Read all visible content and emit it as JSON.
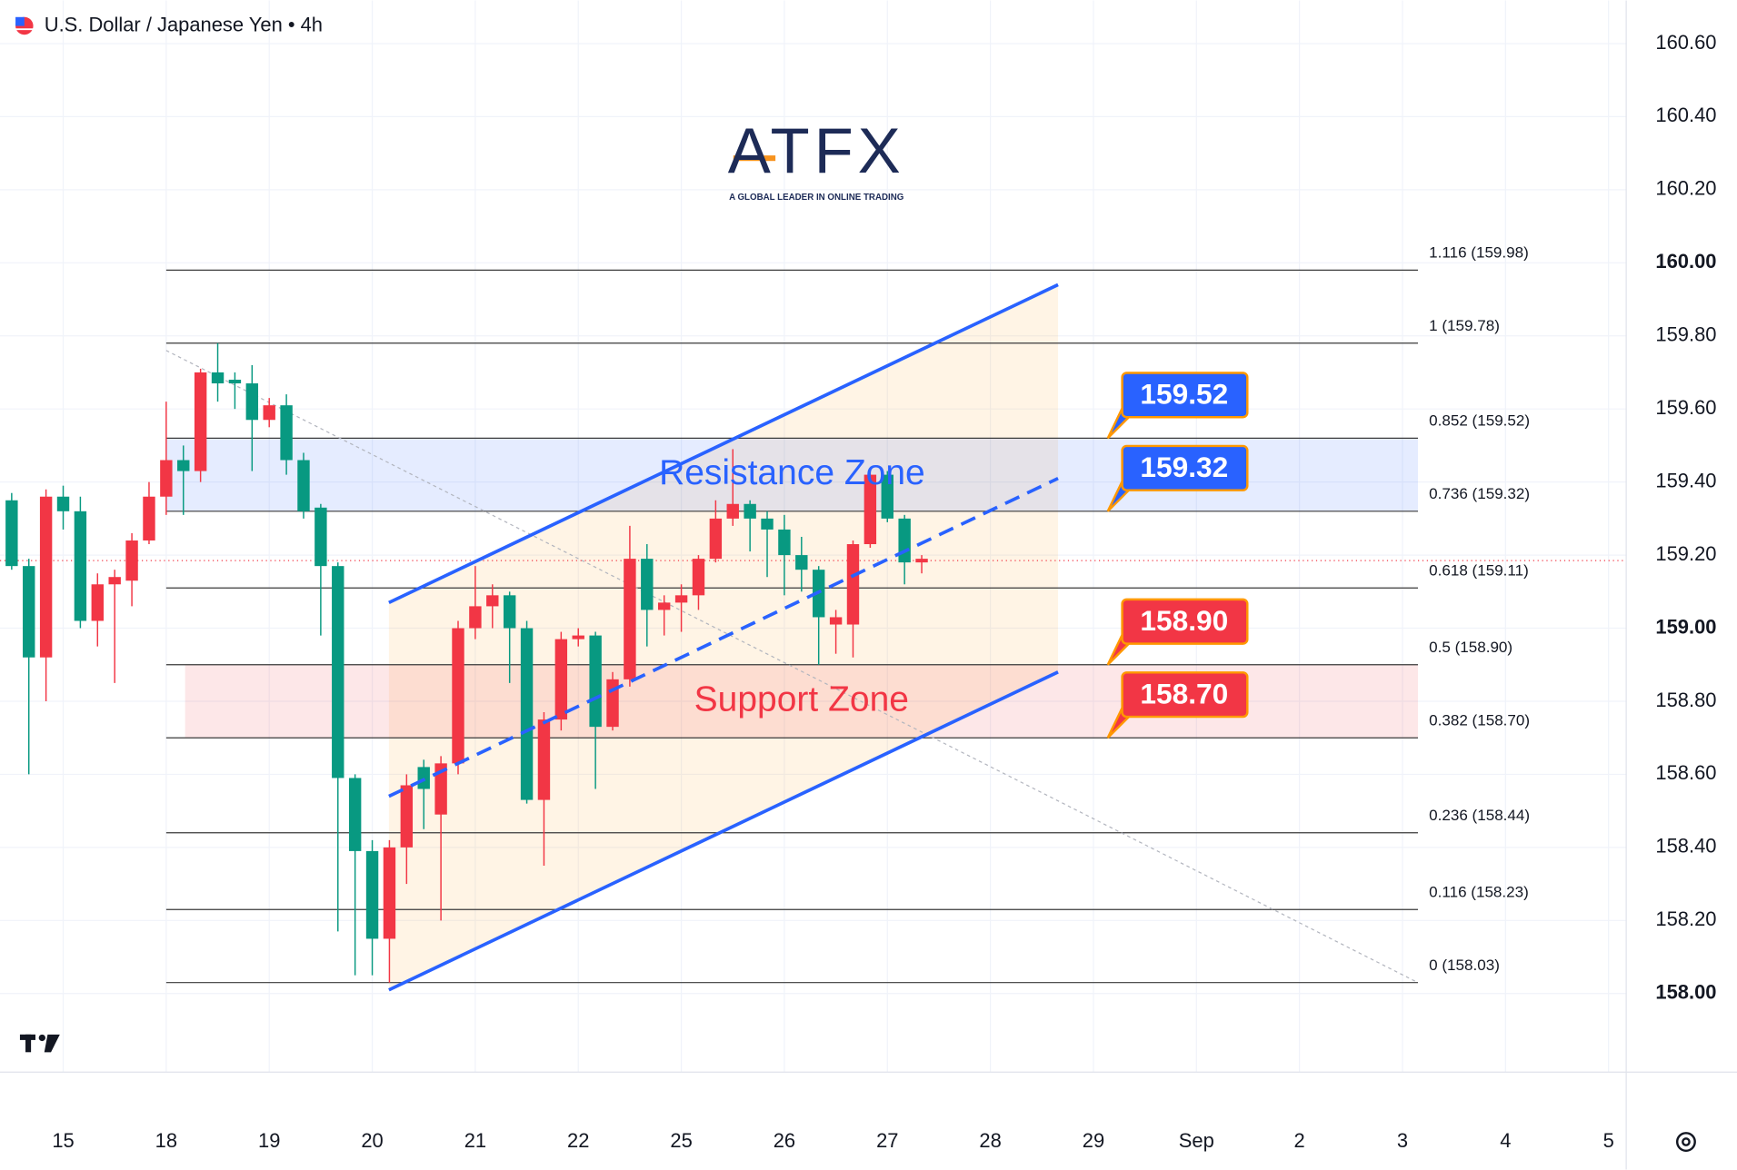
{
  "chart_data": {
    "type": "candlestick",
    "title": "U.S. Dollar / Japanese Yen • 4h",
    "logo": {
      "name": "ATFX",
      "tagline": "A GLOBAL LEADER IN ONLINE TRADING"
    },
    "up_color": "#f23645",
    "down_color": "#089981",
    "x": [
      -3,
      -2,
      -1,
      0,
      1,
      2,
      3,
      4,
      5,
      6,
      7,
      8,
      9,
      10,
      11,
      12,
      13,
      14,
      15,
      16,
      17,
      18,
      19,
      20,
      21,
      22,
      23,
      24,
      25,
      26,
      27,
      28,
      29,
      30,
      31,
      32,
      33,
      34,
      35,
      36,
      37,
      38,
      39,
      40,
      41,
      42,
      43,
      44,
      45,
      46,
      47,
      48,
      49,
      50
    ],
    "open": [
      159.35,
      159.17,
      158.92,
      159.36,
      159.32,
      159.02,
      159.12,
      159.13,
      159.24,
      159.36,
      159.46,
      159.43,
      159.7,
      159.68,
      159.67,
      159.57,
      159.61,
      159.46,
      159.33,
      159.17,
      158.59,
      158.39,
      158.15,
      158.4,
      158.62,
      158.49,
      158.63,
      159.0,
      159.06,
      159.09,
      159.0,
      158.53,
      158.75,
      158.97,
      158.98,
      158.73,
      158.86,
      159.19,
      159.05,
      159.07,
      159.09,
      159.19,
      159.3,
      159.34,
      159.3,
      159.27,
      159.2,
      159.16,
      159.01,
      159.01,
      159.23,
      159.42,
      159.3,
      159.18
    ],
    "high": [
      159.37,
      159.19,
      159.38,
      159.39,
      159.36,
      159.15,
      159.16,
      159.26,
      159.4,
      159.62,
      159.5,
      159.71,
      159.78,
      159.7,
      159.72,
      159.63,
      159.64,
      159.48,
      159.34,
      159.18,
      158.6,
      158.42,
      158.42,
      158.6,
      158.64,
      158.65,
      159.02,
      159.17,
      159.12,
      159.1,
      159.02,
      158.77,
      158.99,
      159.0,
      158.99,
      158.88,
      159.28,
      159.23,
      159.09,
      159.12,
      159.2,
      159.35,
      159.49,
      159.35,
      159.32,
      159.31,
      159.25,
      159.17,
      159.05,
      159.24,
      159.43,
      159.43,
      159.31,
      159.2
    ],
    "low": [
      159.16,
      158.6,
      158.8,
      159.27,
      159.0,
      158.95,
      158.85,
      159.06,
      159.23,
      159.31,
      159.31,
      159.4,
      159.62,
      159.6,
      159.43,
      159.55,
      159.42,
      159.3,
      158.98,
      158.17,
      158.05,
      158.05,
      158.03,
      158.3,
      158.45,
      158.2,
      158.6,
      158.97,
      159.0,
      158.85,
      158.52,
      158.35,
      158.72,
      158.95,
      158.56,
      158.72,
      158.84,
      158.95,
      158.98,
      158.99,
      159.05,
      159.18,
      159.28,
      159.21,
      159.14,
      159.09,
      159.1,
      158.9,
      158.93,
      158.92,
      159.22,
      159.29,
      159.12,
      159.15
    ],
    "close": [
      159.17,
      158.92,
      159.36,
      159.32,
      159.02,
      159.12,
      159.14,
      159.24,
      159.36,
      159.46,
      159.43,
      159.7,
      159.67,
      159.67,
      159.57,
      159.61,
      159.46,
      159.32,
      159.17,
      158.59,
      158.39,
      158.15,
      158.4,
      158.57,
      158.56,
      158.63,
      159.0,
      159.06,
      159.09,
      159.0,
      158.53,
      158.75,
      158.97,
      158.98,
      158.73,
      158.86,
      159.19,
      159.05,
      159.07,
      159.09,
      159.19,
      159.3,
      159.34,
      159.3,
      159.27,
      159.2,
      159.16,
      159.03,
      159.03,
      159.23,
      159.42,
      159.3,
      159.18,
      159.19
    ],
    "xlim": [
      -3.68,
      91.03
    ],
    "xticks": [
      {
        "value": 0,
        "label": "15"
      },
      {
        "value": 6,
        "label": "18"
      },
      {
        "value": 12,
        "label": "19"
      },
      {
        "value": 18,
        "label": "20"
      },
      {
        "value": 24,
        "label": "21"
      },
      {
        "value": 30,
        "label": "22"
      },
      {
        "value": 36,
        "label": "25"
      },
      {
        "value": 42,
        "label": "26"
      },
      {
        "value": 48,
        "label": "27"
      },
      {
        "value": 54,
        "label": "28"
      },
      {
        "value": 60,
        "label": "29"
      },
      {
        "value": 66,
        "label": "Sep"
      },
      {
        "value": 72,
        "label": "2"
      },
      {
        "value": 78,
        "label": "3"
      },
      {
        "value": 84,
        "label": "4"
      },
      {
        "value": 90,
        "label": "5"
      }
    ],
    "ylim": [
      157.785,
      160.718
    ],
    "yticks": [
      {
        "value": 158,
        "label": "158.00"
      },
      {
        "value": 158.2,
        "label": "158.20"
      },
      {
        "value": 158.4,
        "label": "158.40"
      },
      {
        "value": 158.6,
        "label": "158.60"
      },
      {
        "value": 158.8,
        "label": "158.80"
      },
      {
        "value": 159,
        "label": "159.00"
      },
      {
        "value": 159.2,
        "label": "159.20"
      },
      {
        "value": 159.4,
        "label": "159.40"
      },
      {
        "value": 159.6,
        "label": "159.60"
      },
      {
        "value": 159.8,
        "label": "159.80"
      },
      {
        "value": 160,
        "label": "160.00"
      },
      {
        "value": 160.2,
        "label": "160.20"
      },
      {
        "value": 160.4,
        "label": "160.40"
      },
      {
        "value": 160.6,
        "label": "160.60"
      }
    ],
    "grid": true,
    "last_price": 159.185,
    "fib_levels": [
      {
        "value": 159.98,
        "label": "1.116 (159.98)"
      },
      {
        "value": 159.78,
        "label": "1 (159.78)"
      },
      {
        "value": 159.52,
        "label": "0.852 (159.52)"
      },
      {
        "value": 159.32,
        "label": "0.736 (159.32)"
      },
      {
        "value": 159.11,
        "label": "0.618 (159.11)"
      },
      {
        "value": 158.9,
        "label": "0.5 (158.90)"
      },
      {
        "value": 158.7,
        "label": "0.382 (158.70)"
      },
      {
        "value": 158.44,
        "label": "0.236 (158.44)"
      },
      {
        "value": 158.23,
        "label": "0.116 (158.23)"
      },
      {
        "value": 158.03,
        "label": "0 (158.03)"
      }
    ],
    "fib_x": [
      6,
      78.9
    ],
    "zones": [
      {
        "label": "Resistance Zone",
        "range": [
          159.32,
          159.52
        ],
        "x": [
          6,
          78.9
        ],
        "color": "#2962ff"
      },
      {
        "label": "Support Zone",
        "range": [
          158.7,
          158.9
        ],
        "x": [
          7.1,
          78.9
        ],
        "color": "#f23645"
      }
    ],
    "channel": {
      "color": "#2962ff",
      "upper": {
        "x": [
          18.97,
          57.94
        ],
        "y": [
          159.07,
          159.94
        ]
      },
      "lower": {
        "x": [
          18.97,
          57.94
        ],
        "y": [
          158.01,
          158.88
        ]
      },
      "middle": {
        "x": [
          18.97,
          57.94
        ],
        "y": [
          158.54,
          159.41
        ]
      }
    },
    "trendline": {
      "x": [
        6,
        78.9
      ],
      "y": [
        159.76,
        158.03
      ]
    },
    "callouts": [
      {
        "value": 159.52,
        "label": "159.52",
        "color": "#2962ff"
      },
      {
        "value": 159.32,
        "label": "159.32",
        "color": "#2962ff"
      },
      {
        "value": 158.9,
        "label": "158.90",
        "color": "#f23645"
      },
      {
        "value": 158.7,
        "label": "158.70",
        "color": "#f23645"
      }
    ]
  }
}
